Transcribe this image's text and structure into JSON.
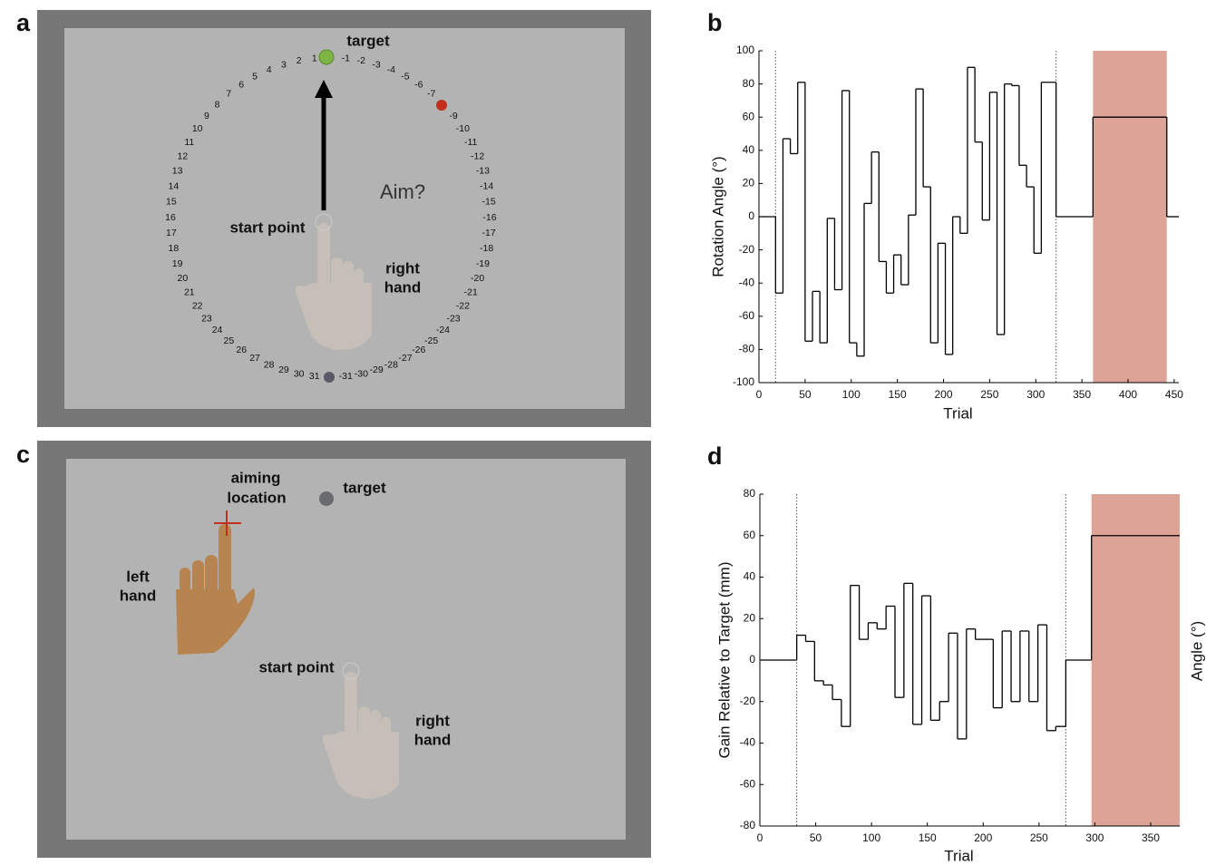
{
  "panel_labels": [
    "a",
    "b",
    "c",
    "d"
  ],
  "diagram_a": {
    "target": "target",
    "prompt": "Aim?",
    "start_point": "start point",
    "hand": [
      "right",
      "hand"
    ],
    "ring_left": [
      "1",
      "2",
      "3",
      "4",
      "5",
      "6",
      "7",
      "8",
      "9",
      "10",
      "11",
      "12",
      "13",
      "14",
      "15",
      "16",
      "17",
      "18",
      "19",
      "20",
      "21",
      "22",
      "23",
      "24",
      "25",
      "26",
      "27",
      "28",
      "29",
      "30",
      "31"
    ],
    "ring_right": [
      "-1",
      "-2",
      "-3",
      "-4",
      "-5",
      "-6",
      "-7",
      null,
      "-9",
      "-10",
      "-11",
      "-12",
      "-13",
      "-14",
      "-15",
      "-16",
      "-17",
      "-18",
      "-19",
      "-20",
      "-21",
      "-22",
      "-23",
      "-24",
      "-25",
      "-26",
      "-27",
      "-28",
      "-29",
      "-30",
      "-31"
    ]
  },
  "diagram_c": {
    "aiming_location": [
      "aiming",
      "location"
    ],
    "target": "target",
    "left_hand": [
      "left",
      "hand"
    ],
    "start_point": "start point",
    "right_hand": [
      "right",
      "hand"
    ]
  },
  "chart_data": [
    {
      "type": "line",
      "step": true,
      "xlabel": "Trial",
      "ylabel": "Rotation Angle (°)",
      "color": "#000000",
      "x": [
        0,
        18,
        26,
        34,
        42,
        50,
        58,
        66,
        74,
        82,
        90,
        98,
        106,
        114,
        122,
        130,
        138,
        146,
        154,
        162,
        170,
        178,
        186,
        194,
        202,
        210,
        218,
        226,
        234,
        242,
        250,
        258,
        266,
        274,
        282,
        290,
        298,
        306,
        322,
        362,
        442
      ],
      "values": [
        0,
        -46,
        47,
        38,
        81,
        -75,
        -45,
        -76,
        -1,
        -44,
        76,
        -76,
        -84,
        8,
        39,
        -27,
        -46,
        -23,
        -41,
        1,
        77,
        18,
        -76,
        -16,
        -83,
        0,
        -10,
        90,
        45,
        -2,
        75,
        -71,
        80,
        79,
        31,
        18,
        -22,
        81,
        0,
        60,
        0
      ],
      "xlim": [
        0,
        455
      ],
      "ylim": [
        -100,
        100
      ],
      "xticks": [
        0,
        50,
        100,
        150,
        200,
        250,
        300,
        350,
        400,
        450
      ],
      "yticks": [
        -100,
        -80,
        -60,
        -40,
        -20,
        0,
        20,
        40,
        60,
        80,
        100
      ],
      "vlines": [
        18,
        322
      ],
      "shaded_region": {
        "x": [
          362,
          442
        ],
        "color": "#dca396"
      }
    },
    {
      "type": "line",
      "step": true,
      "xlabel": "Trial",
      "ylabel": "Gain Relative to Target (mm)",
      "y2label": "Angle (°)",
      "color": "#000000",
      "x": [
        0,
        33,
        41,
        49,
        57,
        65,
        73,
        81,
        89,
        97,
        105,
        113,
        121,
        129,
        137,
        145,
        153,
        161,
        169,
        177,
        185,
        193,
        201,
        209,
        217,
        225,
        233,
        241,
        249,
        257,
        265,
        274,
        297
      ],
      "values": [
        0,
        12,
        9,
        -10,
        -12,
        -19,
        -32,
        36,
        10,
        18,
        15,
        26,
        -18,
        37,
        -31,
        31,
        -29,
        -20,
        13,
        -38,
        15,
        10,
        10,
        -23,
        14,
        -20,
        14,
        -20,
        17,
        -34,
        -32,
        0,
        60
      ],
      "xlim": [
        0,
        376
      ],
      "ylim": [
        -80,
        80
      ],
      "xticks": [
        0,
        50,
        100,
        150,
        200,
        250,
        300,
        350
      ],
      "yticks": [
        -80,
        -60,
        -40,
        -20,
        0,
        20,
        40,
        60,
        80
      ],
      "vlines": [
        33,
        274
      ],
      "shaded_region": {
        "x": [
          297,
          376
        ],
        "color": "#dca396"
      }
    }
  ]
}
